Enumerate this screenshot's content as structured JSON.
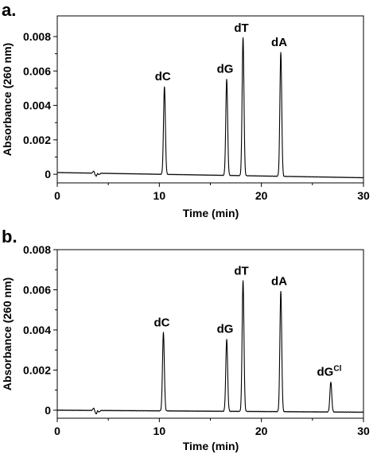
{
  "chart_data": [
    {
      "panel_label": "a.",
      "type": "line",
      "xlabel": "Time (min)",
      "ylabel": "Absorbance (260 nm)",
      "xlim": [
        0,
        30
      ],
      "ylim": [
        -0.0005,
        0.0092
      ],
      "x_ticks": [
        0,
        10,
        20,
        30
      ],
      "y_ticks": [
        0,
        0.002,
        0.004,
        0.006,
        0.008
      ],
      "y_tick_labels": [
        "0",
        "0.002",
        "0.004",
        "0.006",
        "0.008"
      ],
      "baseline": {
        "start": 0.0001,
        "end": -0.0002,
        "dip_x": 3.8
      },
      "peaks": [
        {
          "label": "dC",
          "sup": "",
          "x": 10.5,
          "height": 0.0051
        },
        {
          "label": "dG",
          "sup": "",
          "x": 16.6,
          "height": 0.0056
        },
        {
          "label": "dT",
          "sup": "",
          "x": 18.2,
          "height": 0.008
        },
        {
          "label": "dA",
          "sup": "",
          "x": 21.9,
          "height": 0.0072
        }
      ]
    },
    {
      "panel_label": "b.",
      "type": "line",
      "xlabel": "Time (min)",
      "ylabel": "Absorbance (260 nm)",
      "xlim": [
        0,
        30
      ],
      "ylim": [
        -0.0004,
        0.008
      ],
      "x_ticks": [
        0,
        10,
        20,
        30
      ],
      "y_ticks": [
        0,
        0.002,
        0.004,
        0.006,
        0.008
      ],
      "y_tick_labels": [
        "0",
        "0.002",
        "0.004",
        "0.006",
        "0.008"
      ],
      "baseline": {
        "start": 0.0,
        "end": -0.0001,
        "dip_x": 3.8
      },
      "peaks": [
        {
          "label": "dC",
          "sup": "",
          "x": 10.4,
          "height": 0.0039
        },
        {
          "label": "dG",
          "sup": "",
          "x": 16.6,
          "height": 0.0036
        },
        {
          "label": "dT",
          "sup": "",
          "x": 18.2,
          "height": 0.0065
        },
        {
          "label": "dA",
          "sup": "",
          "x": 21.9,
          "height": 0.006
        },
        {
          "label": "dG",
          "sup": "Cl",
          "x": 26.8,
          "height": 0.0015
        }
      ]
    }
  ]
}
